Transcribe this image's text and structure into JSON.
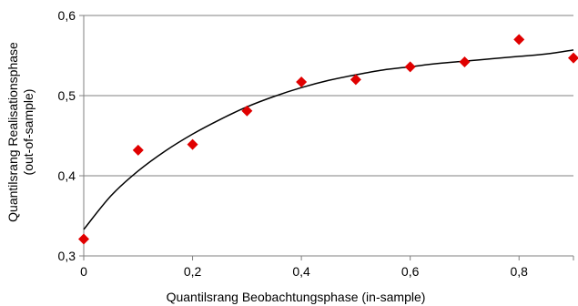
{
  "chart_data": {
    "type": "scatter",
    "title": "",
    "xlabel": "Quantilsrang Beobachtungsphase (in-sample)",
    "ylabel_lines": [
      "Quantilsrang Realisationsphase",
      "(out-of-sample)"
    ],
    "xlim": [
      0,
      0.9
    ],
    "ylim": [
      0.3,
      0.6
    ],
    "x_ticks": [
      0,
      0.2,
      0.4,
      0.6,
      0.8
    ],
    "x_tick_labels": [
      "0",
      "0,2",
      "0,4",
      "0,6",
      "0,8"
    ],
    "y_ticks": [
      0.3,
      0.4,
      0.5,
      0.6
    ],
    "y_tick_labels": [
      "0,3",
      "0,4",
      "0,5",
      "0,6"
    ],
    "grid": "horizontal",
    "legend": "none",
    "points": {
      "x": [
        0,
        0.1,
        0.2,
        0.3,
        0.4,
        0.5,
        0.6,
        0.7,
        0.8,
        0.9
      ],
      "y": [
        0.321,
        0.432,
        0.439,
        0.481,
        0.517,
        0.52,
        0.536,
        0.542,
        0.57,
        0.547
      ],
      "marker": "diamond",
      "color": "#e00000"
    },
    "trendline": {
      "x": [
        0,
        0.05,
        0.1,
        0.15,
        0.2,
        0.25,
        0.3,
        0.35,
        0.4,
        0.45,
        0.5,
        0.55,
        0.6,
        0.65,
        0.7,
        0.75,
        0.8,
        0.85,
        0.9
      ],
      "y": [
        0.333,
        0.375,
        0.406,
        0.431,
        0.452,
        0.47,
        0.486,
        0.499,
        0.51,
        0.519,
        0.526,
        0.532,
        0.536,
        0.54,
        0.543,
        0.546,
        0.549,
        0.552,
        0.557
      ],
      "color": "#000000"
    }
  }
}
